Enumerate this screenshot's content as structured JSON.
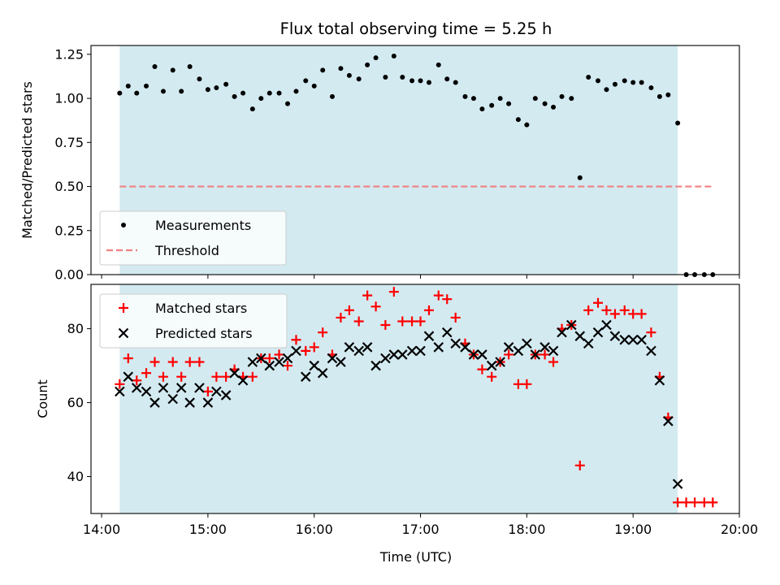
{
  "chart_data": {
    "title": "Flux total observing time = 5.25 h",
    "xlabel": "Time (UTC)",
    "x_ticks": [
      "14:00",
      "15:00",
      "16:00",
      "17:00",
      "18:00",
      "19:00",
      "20:00"
    ],
    "x_range_hours": [
      13.9,
      20.0
    ],
    "observing_window_hours": [
      14.17,
      19.42
    ],
    "window_color": "#d3eaf1",
    "panels": [
      {
        "type": "scatter",
        "ylabel": "Matched/Predicted stars",
        "ylim": [
          0,
          1.3
        ],
        "y_ticks": [
          0.0,
          0.25,
          0.5,
          0.75,
          1.0,
          1.25
        ],
        "legend_position": "lower-left",
        "series": [
          {
            "name": "Measurements",
            "marker": "dot",
            "color": "#000000",
            "x": [
              14.17,
              14.25,
              14.33,
              14.42,
              14.5,
              14.58,
              14.67,
              14.75,
              14.83,
              14.92,
              15.0,
              15.08,
              15.17,
              15.25,
              15.33,
              15.42,
              15.5,
              15.58,
              15.67,
              15.75,
              15.83,
              15.92,
              16.0,
              16.08,
              16.17,
              16.25,
              16.33,
              16.42,
              16.5,
              16.58,
              16.67,
              16.75,
              16.83,
              16.92,
              17.0,
              17.08,
              17.17,
              17.25,
              17.33,
              17.42,
              17.5,
              17.58,
              17.67,
              17.75,
              17.83,
              17.92,
              18.0,
              18.08,
              18.17,
              18.25,
              18.33,
              18.42,
              18.5,
              18.58,
              18.67,
              18.75,
              18.83,
              18.92,
              19.0,
              19.08,
              19.17,
              19.25,
              19.33,
              19.42,
              19.5,
              19.58,
              19.67,
              19.75
            ],
            "y": [
              1.03,
              1.07,
              1.03,
              1.07,
              1.18,
              1.04,
              1.16,
              1.04,
              1.18,
              1.11,
              1.05,
              1.06,
              1.08,
              1.01,
              1.03,
              0.94,
              1.0,
              1.03,
              1.03,
              0.97,
              1.04,
              1.1,
              1.07,
              1.16,
              1.01,
              1.17,
              1.13,
              1.11,
              1.19,
              1.23,
              1.12,
              1.24,
              1.12,
              1.1,
              1.1,
              1.09,
              1.19,
              1.11,
              1.09,
              1.01,
              1.0,
              0.94,
              0.96,
              1.0,
              0.97,
              0.88,
              0.85,
              1.0,
              0.97,
              0.95,
              1.01,
              1.0,
              0.55,
              1.12,
              1.1,
              1.05,
              1.08,
              1.1,
              1.09,
              1.09,
              1.06,
              1.01,
              1.02,
              0.86,
              0.0,
              0.0,
              0.0,
              0.0
            ]
          },
          {
            "name": "Threshold",
            "marker": "dashed-line",
            "color": "#f08080",
            "x": [
              14.17,
              19.75
            ],
            "y": [
              0.5,
              0.5
            ]
          }
        ]
      },
      {
        "type": "scatter",
        "ylabel": "Count",
        "ylim": [
          30,
          92
        ],
        "y_ticks": [
          40,
          60,
          80
        ],
        "legend_position": "upper-left",
        "series": [
          {
            "name": "Matched stars",
            "marker": "plus",
            "color": "#ff0000",
            "x": [
              14.17,
              14.25,
              14.33,
              14.42,
              14.5,
              14.58,
              14.67,
              14.75,
              14.83,
              14.92,
              15.0,
              15.08,
              15.17,
              15.25,
              15.33,
              15.42,
              15.5,
              15.58,
              15.67,
              15.75,
              15.83,
              15.92,
              16.0,
              16.08,
              16.17,
              16.25,
              16.33,
              16.42,
              16.5,
              16.58,
              16.67,
              16.75,
              16.83,
              16.92,
              17.0,
              17.08,
              17.17,
              17.25,
              17.33,
              17.42,
              17.5,
              17.58,
              17.67,
              17.75,
              17.83,
              17.92,
              18.0,
              18.08,
              18.17,
              18.25,
              18.33,
              18.42,
              18.5,
              18.58,
              18.67,
              18.75,
              18.83,
              18.92,
              19.0,
              19.08,
              19.17,
              19.25,
              19.33,
              19.42,
              19.5,
              19.58,
              19.67,
              19.75
            ],
            "y": [
              65,
              72,
              66,
              68,
              71,
              67,
              71,
              67,
              71,
              71,
              63,
              67,
              67,
              69,
              67,
              67,
              72,
              72,
              73,
              70,
              77,
              74,
              75,
              79,
              73,
              83,
              85,
              82,
              89,
              86,
              81,
              90,
              82,
              82,
              82,
              85,
              89,
              88,
              83,
              76,
              73,
              69,
              67,
              71,
              73,
              65,
              65,
              73,
              73,
              71,
              80,
              81,
              43,
              85,
              87,
              85,
              84,
              85,
              84,
              84,
              79,
              67,
              56,
              33,
              33,
              33,
              33,
              33
            ]
          },
          {
            "name": "Predicted stars",
            "marker": "x",
            "color": "#000000",
            "x": [
              14.17,
              14.25,
              14.33,
              14.42,
              14.5,
              14.58,
              14.67,
              14.75,
              14.83,
              14.92,
              15.0,
              15.08,
              15.17,
              15.25,
              15.33,
              15.42,
              15.5,
              15.58,
              15.67,
              15.75,
              15.83,
              15.92,
              16.0,
              16.08,
              16.17,
              16.25,
              16.33,
              16.42,
              16.5,
              16.58,
              16.67,
              16.75,
              16.83,
              16.92,
              17.0,
              17.08,
              17.17,
              17.25,
              17.33,
              17.42,
              17.5,
              17.58,
              17.67,
              17.75,
              17.83,
              17.92,
              18.0,
              18.08,
              18.17,
              18.25,
              18.33,
              18.42,
              18.5,
              18.58,
              18.67,
              18.75,
              18.83,
              18.92,
              19.0,
              19.08,
              19.17,
              19.25,
              19.33,
              19.42
            ],
            "y": [
              63,
              67,
              64,
              63,
              60,
              64,
              61,
              64,
              60,
              64,
              60,
              63,
              62,
              68,
              66,
              71,
              72,
              70,
              71,
              72,
              74,
              67,
              70,
              68,
              72,
              71,
              75,
              74,
              75,
              70,
              72,
              73,
              73,
              74,
              74,
              78,
              75,
              79,
              76,
              75,
              73,
              73,
              70,
              71,
              75,
              74,
              76,
              73,
              75,
              74,
              79,
              81,
              78,
              76,
              79,
              81,
              78,
              77,
              77,
              77,
              74,
              66,
              55,
              38
            ]
          }
        ]
      }
    ]
  }
}
